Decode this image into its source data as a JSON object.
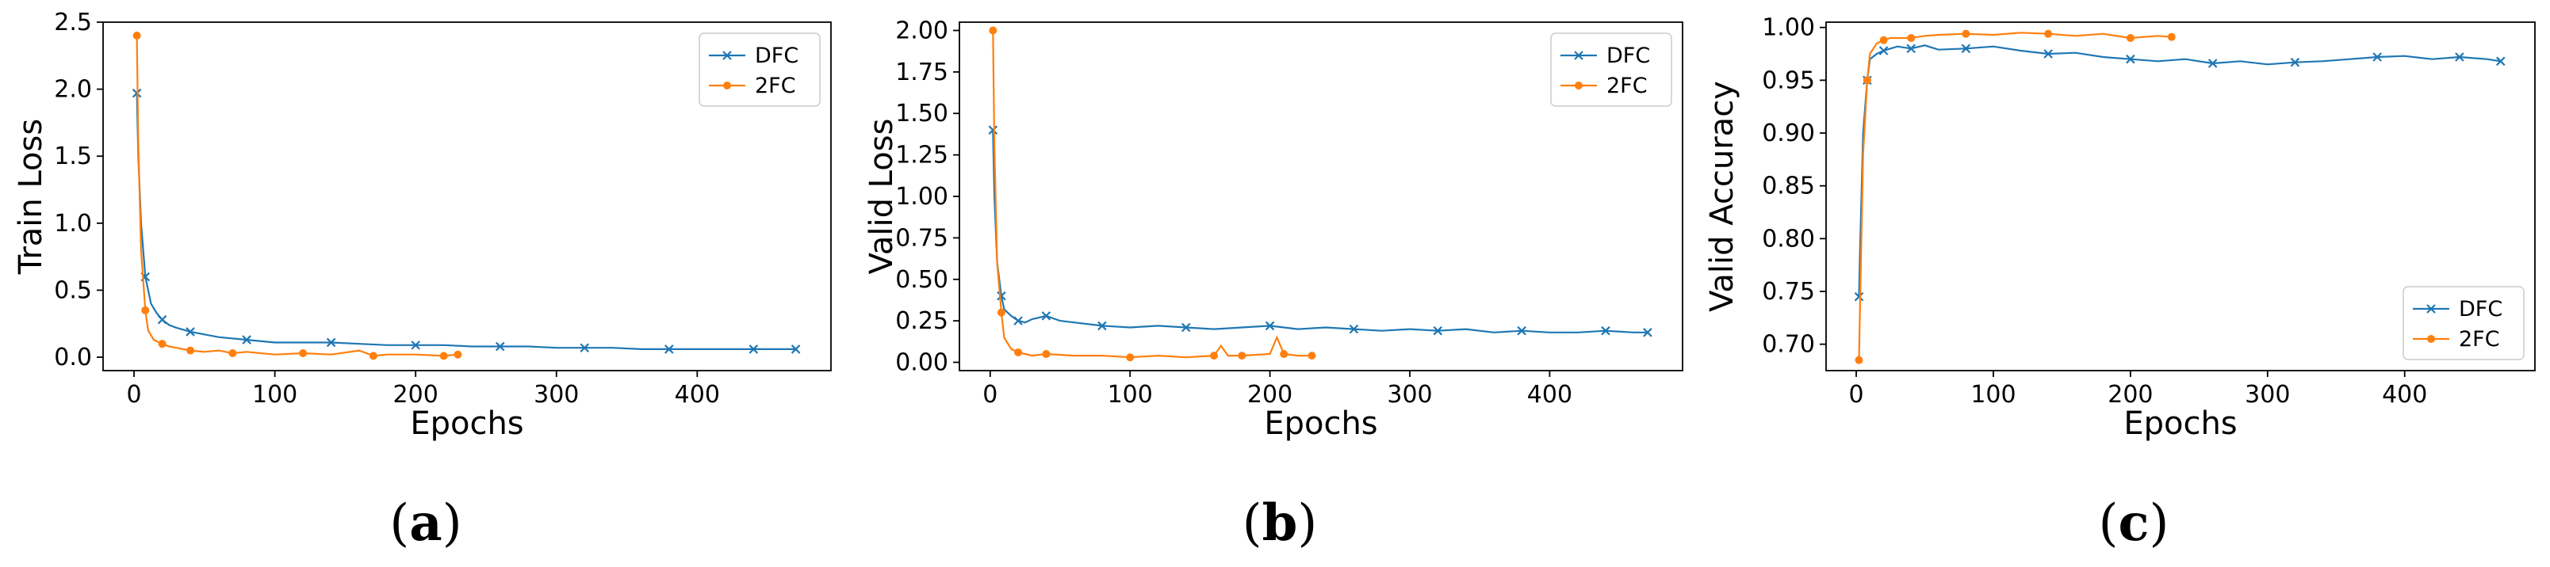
{
  "colors": {
    "DFC": "#1f77b4",
    "2FC": "#ff7f0e"
  },
  "chart_data": [
    {
      "type": "line",
      "caption": "a",
      "xlabel": "Epochs",
      "ylabel": "Train Loss",
      "xlim": [
        -22,
        495
      ],
      "ylim": [
        -0.1,
        2.5
      ],
      "xticks": [
        0,
        100,
        200,
        300,
        400
      ],
      "xtick_labels": [
        "0",
        "100",
        "200",
        "300",
        "400"
      ],
      "yticks": [
        0.0,
        0.5,
        1.0,
        1.5,
        2.0,
        2.5
      ],
      "ytick_labels": [
        "0.0",
        "0.5",
        "1.0",
        "1.5",
        "2.0",
        "2.5"
      ],
      "legend_position": "upper right",
      "series": [
        {
          "name": "DFC",
          "x": [
            2,
            3,
            5,
            8,
            12,
            16,
            20,
            25,
            30,
            40,
            50,
            60,
            80,
            100,
            120,
            140,
            160,
            180,
            200,
            220,
            240,
            260,
            280,
            300,
            320,
            340,
            360,
            380,
            400,
            420,
            440,
            460,
            470
          ],
          "y": [
            1.97,
            1.5,
            1.0,
            0.6,
            0.4,
            0.33,
            0.28,
            0.24,
            0.22,
            0.19,
            0.17,
            0.15,
            0.13,
            0.11,
            0.11,
            0.11,
            0.1,
            0.09,
            0.09,
            0.09,
            0.08,
            0.08,
            0.08,
            0.07,
            0.07,
            0.07,
            0.06,
            0.06,
            0.06,
            0.06,
            0.06,
            0.06,
            0.06
          ]
        },
        {
          "name": "2FC",
          "x": [
            2,
            3,
            5,
            8,
            10,
            14,
            20,
            25,
            30,
            40,
            50,
            60,
            70,
            80,
            100,
            120,
            140,
            160,
            170,
            180,
            200,
            220,
            230
          ],
          "y": [
            2.4,
            1.6,
            0.8,
            0.35,
            0.2,
            0.13,
            0.1,
            0.08,
            0.07,
            0.05,
            0.04,
            0.05,
            0.03,
            0.04,
            0.02,
            0.03,
            0.02,
            0.05,
            0.01,
            0.02,
            0.02,
            0.01,
            0.02
          ]
        }
      ]
    },
    {
      "type": "line",
      "caption": "b",
      "xlabel": "Epochs",
      "ylabel": "Valid Loss",
      "xlim": [
        -22,
        495
      ],
      "ylim": [
        -0.05,
        2.05
      ],
      "xticks": [
        0,
        100,
        200,
        300,
        400
      ],
      "xtick_labels": [
        "0",
        "100",
        "200",
        "300",
        "400"
      ],
      "yticks": [
        0.0,
        0.25,
        0.5,
        0.75,
        1.0,
        1.25,
        1.5,
        1.75,
        2.0
      ],
      "ytick_labels": [
        "0.00",
        "0.25",
        "0.50",
        "0.75",
        "1.00",
        "1.25",
        "1.50",
        "1.75",
        "2.00"
      ],
      "legend_position": "upper right",
      "series": [
        {
          "name": "DFC",
          "x": [
            2,
            3,
            5,
            8,
            10,
            15,
            20,
            25,
            30,
            40,
            50,
            60,
            80,
            100,
            120,
            140,
            160,
            180,
            200,
            220,
            240,
            260,
            280,
            300,
            320,
            340,
            360,
            380,
            400,
            420,
            440,
            460,
            470
          ],
          "y": [
            1.4,
            1.0,
            0.6,
            0.4,
            0.32,
            0.28,
            0.25,
            0.24,
            0.26,
            0.28,
            0.25,
            0.24,
            0.22,
            0.21,
            0.22,
            0.21,
            0.2,
            0.21,
            0.22,
            0.2,
            0.21,
            0.2,
            0.19,
            0.2,
            0.19,
            0.2,
            0.18,
            0.19,
            0.18,
            0.18,
            0.19,
            0.18,
            0.18
          ]
        },
        {
          "name": "2FC",
          "x": [
            2,
            3,
            5,
            8,
            10,
            15,
            20,
            25,
            30,
            40,
            60,
            80,
            100,
            120,
            140,
            160,
            165,
            170,
            180,
            200,
            205,
            210,
            220,
            230
          ],
          "y": [
            2.0,
            1.3,
            0.6,
            0.3,
            0.15,
            0.08,
            0.06,
            0.05,
            0.04,
            0.05,
            0.04,
            0.04,
            0.03,
            0.04,
            0.03,
            0.04,
            0.1,
            0.04,
            0.04,
            0.05,
            0.15,
            0.05,
            0.04,
            0.04
          ]
        }
      ]
    },
    {
      "type": "line",
      "caption": "c",
      "xlabel": "Epochs",
      "ylabel": "Valid Accuracy",
      "xlim": [
        -22,
        495
      ],
      "ylim": [
        0.675,
        1.005
      ],
      "xticks": [
        0,
        100,
        200,
        300,
        400
      ],
      "xtick_labels": [
        "0",
        "100",
        "200",
        "300",
        "400"
      ],
      "yticks": [
        0.7,
        0.75,
        0.8,
        0.85,
        0.9,
        0.95,
        1.0
      ],
      "ytick_labels": [
        "0.70",
        "0.75",
        "0.80",
        "0.85",
        "0.90",
        "0.95",
        "1.00"
      ],
      "legend_position": "lower right",
      "series": [
        {
          "name": "DFC",
          "x": [
            2,
            3,
            5,
            8,
            10,
            15,
            20,
            25,
            30,
            40,
            50,
            60,
            80,
            100,
            120,
            140,
            160,
            180,
            200,
            220,
            240,
            260,
            280,
            300,
            320,
            340,
            360,
            380,
            400,
            420,
            440,
            460,
            470
          ],
          "y": [
            0.745,
            0.8,
            0.9,
            0.95,
            0.97,
            0.975,
            0.978,
            0.98,
            0.982,
            0.98,
            0.983,
            0.979,
            0.98,
            0.982,
            0.978,
            0.975,
            0.976,
            0.972,
            0.97,
            0.968,
            0.97,
            0.966,
            0.968,
            0.965,
            0.967,
            0.968,
            0.97,
            0.972,
            0.973,
            0.97,
            0.972,
            0.97,
            0.968
          ]
        },
        {
          "name": "2FC",
          "x": [
            2,
            3,
            5,
            8,
            10,
            15,
            20,
            25,
            30,
            40,
            50,
            60,
            80,
            100,
            120,
            140,
            160,
            180,
            200,
            220,
            230
          ],
          "y": [
            0.685,
            0.75,
            0.88,
            0.95,
            0.975,
            0.985,
            0.988,
            0.99,
            0.99,
            0.99,
            0.992,
            0.993,
            0.994,
            0.993,
            0.995,
            0.994,
            0.992,
            0.994,
            0.99,
            0.992,
            0.991
          ]
        }
      ]
    }
  ]
}
